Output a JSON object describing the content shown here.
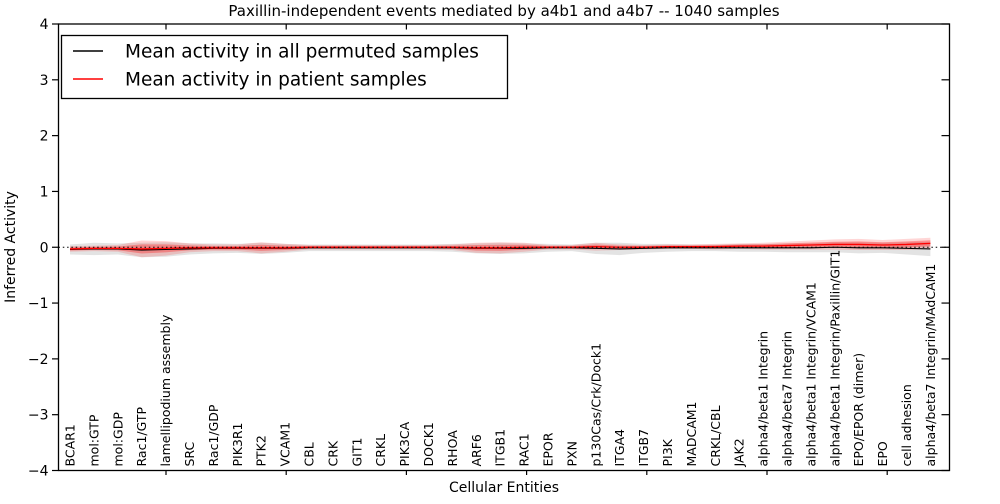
{
  "title": "Paxillin-independent events mediated by a4b1 and a4b7 -- 1040 samples",
  "legend": {
    "entries": [
      {
        "label": "Mean activity in all permuted samples",
        "color": "#000000"
      },
      {
        "label": "Mean activity in patient samples",
        "color": "#ff0000"
      }
    ]
  },
  "chart_data": {
    "type": "line",
    "title": "Paxillin-independent events mediated by a4b1 and a4b7 -- 1040 samples",
    "xlabel": "Cellular Entities",
    "ylabel": "Inferred Activity",
    "ylim": [
      -4,
      4
    ],
    "y_ticks": [
      4,
      3,
      2,
      1,
      0,
      -1,
      -2,
      -3,
      -4
    ],
    "grid": false,
    "legend_position": "upper left",
    "zero_reference_line": true,
    "categories": [
      "BCAR1",
      "mol:GTP",
      "mol:GDP",
      "Rac1/GTP",
      "lamellipodium assembly",
      "SRC",
      "Rac1/GDP",
      "PIK3R1",
      "PTK2",
      "VCAM1",
      "CBL",
      "CRK",
      "GIT1",
      "CRKL",
      "PIK3CA",
      "DOCK1",
      "RHOA",
      "ARF6",
      "ITGB1",
      "RAC1",
      "EPOR",
      "PXN",
      "p130Cas/Crk/Dock1",
      "ITGA4",
      "ITGB7",
      "PI3K",
      "MADCAM1",
      "CRKL/CBL",
      "JAK2",
      "alpha4/beta1 Integrin",
      "alpha4/beta7 Integrin",
      "alpha4/beta1 Integrin/VCAM1",
      "alpha4/beta1 Integrin/Paxillin/GIT1",
      "EPO/EPOR (dimer)",
      "EPO",
      "cell adhesion",
      "alpha4/beta7 Integrin/MAdCAM1"
    ],
    "series": [
      {
        "name": "Mean activity in all permuted samples",
        "color": "#000000",
        "band_alpha": 0.11,
        "values": [
          -0.04,
          -0.03,
          -0.03,
          -0.05,
          -0.04,
          -0.03,
          -0.02,
          -0.02,
          -0.02,
          -0.02,
          -0.01,
          -0.01,
          -0.01,
          -0.01,
          -0.01,
          -0.01,
          -0.01,
          -0.02,
          -0.02,
          -0.02,
          -0.01,
          -0.01,
          -0.02,
          -0.03,
          -0.02,
          -0.01,
          -0.01,
          -0.01,
          -0.01,
          -0.01,
          -0.01,
          -0.01,
          0.0,
          -0.01,
          -0.01,
          -0.02,
          -0.03
        ],
        "band_half_width": [
          0.09,
          0.11,
          0.1,
          0.13,
          0.13,
          0.1,
          0.09,
          0.08,
          0.1,
          0.08,
          0.06,
          0.06,
          0.06,
          0.06,
          0.06,
          0.06,
          0.07,
          0.09,
          0.1,
          0.09,
          0.07,
          0.06,
          0.1,
          0.11,
          0.08,
          0.07,
          0.06,
          0.06,
          0.07,
          0.07,
          0.08,
          0.08,
          0.09,
          0.1,
          0.09,
          0.11,
          0.13
        ]
      },
      {
        "name": "Mean activity in patient samples",
        "color": "#ff0000",
        "band_alpha": 0.16,
        "inner_band_alpha": 0.3,
        "values": [
          -0.03,
          -0.02,
          -0.02,
          -0.03,
          -0.02,
          -0.01,
          -0.01,
          -0.01,
          -0.01,
          -0.01,
          0.0,
          0.0,
          0.0,
          0.0,
          0.0,
          0.0,
          0.0,
          -0.01,
          -0.01,
          0.0,
          0.0,
          0.0,
          0.01,
          0.0,
          0.0,
          0.01,
          0.01,
          0.01,
          0.02,
          0.02,
          0.03,
          0.04,
          0.05,
          0.05,
          0.04,
          0.05,
          0.07
        ],
        "band_half_width": [
          0.05,
          0.05,
          0.06,
          0.15,
          0.13,
          0.08,
          0.06,
          0.06,
          0.1,
          0.07,
          0.04,
          0.04,
          0.04,
          0.04,
          0.04,
          0.04,
          0.05,
          0.09,
          0.1,
          0.08,
          0.04,
          0.04,
          0.07,
          0.05,
          0.04,
          0.04,
          0.04,
          0.05,
          0.05,
          0.06,
          0.07,
          0.08,
          0.09,
          0.1,
          0.09,
          0.1,
          0.1
        ]
      }
    ]
  }
}
